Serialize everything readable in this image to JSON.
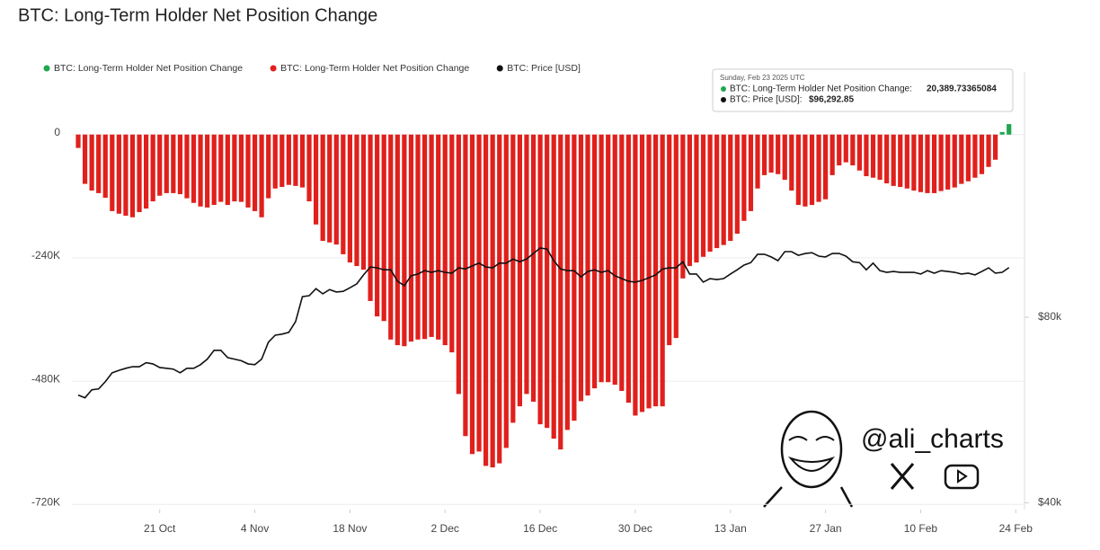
{
  "chart_data": {
    "type": "bar",
    "title": "BTC: Long-Term Holder Net Position Change",
    "categories": [
      null,
      null,
      null,
      null,
      null,
      null,
      null,
      null,
      null,
      null,
      null,
      null,
      "21 Oct",
      null,
      null,
      null,
      null,
      null,
      null,
      null,
      null,
      null,
      null,
      null,
      null,
      null,
      "4 Nov",
      null,
      null,
      null,
      null,
      null,
      null,
      null,
      null,
      null,
      null,
      null,
      null,
      null,
      "18 Nov",
      null,
      null,
      null,
      null,
      null,
      null,
      null,
      null,
      null,
      null,
      null,
      null,
      null,
      "2 Dec",
      null,
      null,
      null,
      null,
      null,
      null,
      null,
      null,
      null,
      null,
      null,
      null,
      null,
      "16 Dec",
      null,
      null,
      null,
      null,
      null,
      null,
      null,
      null,
      null,
      null,
      null,
      null,
      null,
      "30 Dec",
      null,
      null,
      null,
      null,
      null,
      null,
      null,
      null,
      null,
      null,
      null,
      null,
      null,
      "13 Jan",
      null,
      null,
      null,
      null,
      null,
      null,
      null,
      null,
      null,
      null,
      null,
      null,
      null,
      "27 Jan",
      null,
      null,
      null,
      null,
      null,
      null,
      null,
      null,
      null,
      null,
      null,
      null,
      null,
      "10 Feb",
      null,
      null,
      null,
      null,
      null,
      null,
      null,
      null,
      null,
      null,
      null,
      null,
      null,
      "24 Feb"
    ],
    "series": [
      {
        "name": "BTC: Long-Term Holder Net Position Change",
        "color": "#e0201c",
        "positive_color": "#1fa64f",
        "values": [
          -26000,
          -96000,
          -109000,
          -114000,
          -123000,
          -149000,
          -154000,
          -158000,
          -161000,
          -151000,
          -144000,
          -130000,
          -119000,
          -114000,
          -114000,
          -116000,
          -124000,
          -133000,
          -140000,
          -142000,
          -137000,
          -131000,
          -137000,
          -130000,
          -131000,
          -142000,
          -149000,
          -161000,
          -124000,
          -105000,
          -102000,
          -98000,
          -100000,
          -103000,
          -130000,
          -175000,
          -207000,
          -210000,
          -214000,
          -233000,
          -249000,
          -256000,
          -263000,
          -324000,
          -354000,
          -363000,
          -399000,
          -410000,
          -412000,
          -403000,
          -399000,
          -398000,
          -394000,
          -399000,
          -410000,
          -424000,
          -505000,
          -587000,
          -622000,
          -617000,
          -645000,
          -648000,
          -640000,
          -610000,
          -561000,
          -529000,
          -505000,
          -520000,
          -564000,
          -571000,
          -592000,
          -613000,
          -575000,
          -557000,
          -519000,
          -508000,
          -494000,
          -482000,
          -482000,
          -487000,
          -499000,
          -522000,
          -547000,
          -540000,
          -533000,
          -529000,
          -529000,
          -410000,
          -396000,
          -280000,
          -256000,
          -249000,
          -238000,
          -228000,
          -221000,
          -215000,
          -207000,
          -193000,
          -168000,
          -149000,
          -105000,
          -79000,
          -74000,
          -77000,
          -88000,
          -109000,
          -137000,
          -140000,
          -137000,
          -131000,
          -126000,
          -79000,
          -60000,
          -54000,
          -60000,
          -70000,
          -81000,
          -84000,
          -88000,
          -95000,
          -100000,
          -102000,
          -105000,
          -109000,
          -112000,
          -114000,
          -114000,
          -110000,
          -107000,
          -103000,
          -96000,
          -91000,
          -84000,
          -77000,
          -63000,
          -49000,
          5000,
          20389.73365084,
          null
        ]
      },
      {
        "name": "BTC: Price [USD]",
        "color": "#111111",
        "axis": "y2",
        "type": "line",
        "values": [
          59800,
          59200,
          61000,
          61200,
          62900,
          65000,
          65600,
          66100,
          66500,
          66500,
          67500,
          67200,
          66300,
          66100,
          65900,
          65000,
          66100,
          66100,
          67000,
          68400,
          70700,
          70700,
          68800,
          68400,
          68000,
          67200,
          67000,
          68400,
          72900,
          74800,
          75100,
          75600,
          78700,
          86400,
          86700,
          89000,
          87300,
          88700,
          87900,
          88100,
          89300,
          90600,
          93700,
          96500,
          96200,
          95500,
          95500,
          91500,
          90000,
          93400,
          94000,
          95200,
          94600,
          95200,
          94600,
          94300,
          96200,
          95800,
          96900,
          97900,
          96500,
          96200,
          97900,
          97900,
          99400,
          98400,
          99400,
          101500,
          103600,
          103200,
          98800,
          95800,
          95200,
          95200,
          93000,
          94900,
          95500,
          94600,
          95200,
          93400,
          92400,
          91500,
          91200,
          91800,
          92700,
          93700,
          95800,
          96200,
          96200,
          98400,
          94000,
          94000,
          91200,
          92400,
          92100,
          92400,
          94000,
          95500,
          97200,
          98100,
          101200,
          101200,
          100200,
          98800,
          102200,
          102200,
          100800,
          101500,
          101800,
          100500,
          100200,
          101500,
          101500,
          100500,
          98400,
          98100,
          95500,
          97900,
          95200,
          94600,
          94900,
          94600,
          94600,
          94600,
          94000,
          95200,
          94300,
          95200,
          94900,
          94600,
          94000,
          94300,
          93700,
          94900,
          96200,
          94300,
          94600,
          96292.85,
          null
        ]
      }
    ],
    "ylim": [
      -730000,
      122000
    ],
    "yticks": [
      0,
      {
        "value": -240000,
        "label": "-240K"
      },
      {
        "value": -480000,
        "label": "-480K"
      },
      {
        "value": -720000,
        "label": "-720K"
      }
    ],
    "y2lim": [
      39000,
      200000
    ],
    "y2log": true,
    "y2ticks": [
      {
        "value": 80000,
        "label": "$80k"
      },
      {
        "value": 40000,
        "label": "$40k"
      }
    ],
    "grid": true,
    "legend": "top-left",
    "tooltip": {
      "date": "Sunday, Feb 23 2025 UTC",
      "rows": [
        {
          "label": "BTC: Long-Term Holder Net Position Change:",
          "value": "20,389.73365084"
        },
        {
          "label": "BTC: Price [USD]:",
          "value": "$96,292.85"
        }
      ]
    },
    "watermark": "@ali_charts"
  }
}
